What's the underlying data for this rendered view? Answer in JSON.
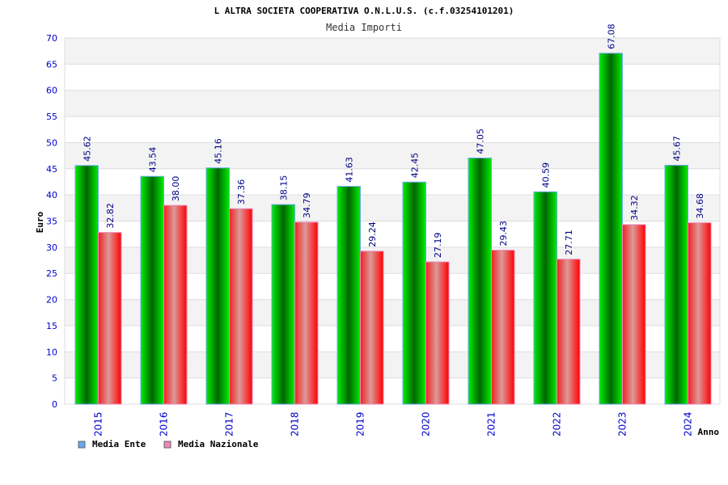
{
  "chart_data": {
    "type": "bar",
    "title": "L ALTRA SOCIETA COOPERATIVA O.N.L.U.S. (c.f.03254101201)",
    "subtitle": "Media Importi",
    "xlabel": "Anno",
    "ylabel": "Euro",
    "ylim": [
      0,
      70
    ],
    "ytick_step": 5,
    "grid": true,
    "legend_position": "bottom-left",
    "categories": [
      "2015",
      "2016",
      "2017",
      "2018",
      "2019",
      "2020",
      "2021",
      "2022",
      "2023",
      "2024"
    ],
    "series": [
      {
        "name": "Media Ente",
        "color": "#00cc00",
        "legend_color": "#66aaee",
        "values": [
          45.62,
          43.54,
          45.16,
          38.15,
          41.63,
          42.45,
          47.05,
          40.59,
          67.08,
          45.67
        ],
        "labels": [
          "45.62",
          "43.54",
          "45.16",
          "38.15",
          "41.63",
          "42.45",
          "47.05",
          "40.59",
          "67.08",
          "45.67"
        ]
      },
      {
        "name": "Media Nazionale",
        "color": "#ff0000",
        "legend_color": "#ee88bb",
        "values": [
          32.82,
          38.0,
          37.36,
          34.79,
          29.24,
          27.19,
          29.43,
          27.71,
          34.32,
          34.68
        ],
        "labels": [
          "32.82",
          "38.00",
          "37.36",
          "34.79",
          "29.24",
          "27.19",
          "29.43",
          "27.71",
          "34.32",
          "34.68"
        ]
      }
    ]
  }
}
